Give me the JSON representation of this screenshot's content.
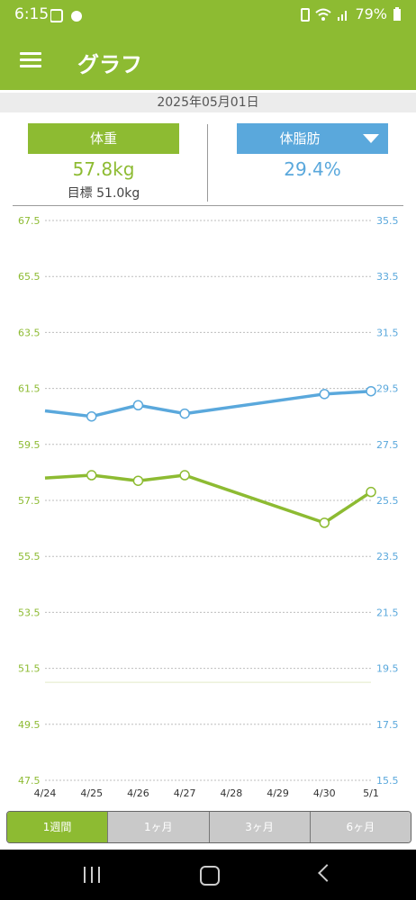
{
  "status_bar": {
    "time": "6:15",
    "battery": "79%"
  },
  "app_bar": {
    "title": "グラフ"
  },
  "date": "2025年05月01日",
  "weight": {
    "label": "体重",
    "value": "57.8kg",
    "goal": "目標 51.0kg"
  },
  "body_fat": {
    "label": "体脂肪",
    "value": "29.4%"
  },
  "tabs": [
    "1週間",
    "1ヶ月",
    "3ヶ月",
    "6ヶ月"
  ],
  "colors": {
    "accent_green": "#8dbb32",
    "accent_blue": "#5aa8dc"
  },
  "chart_data": {
    "type": "line",
    "x": [
      "4/24",
      "4/25",
      "4/26",
      "4/27",
      "4/28",
      "4/29",
      "4/30",
      "5/1"
    ],
    "y_left": {
      "ticks": [
        "67.5",
        "65.5",
        "63.5",
        "61.5",
        "59.5",
        "57.5",
        "55.5",
        "53.5",
        "51.5",
        "49.5",
        "47.5"
      ],
      "ylim": [
        47.5,
        67.5
      ]
    },
    "y_right": {
      "ticks": [
        "35.5",
        "33.5",
        "31.5",
        "29.5",
        "27.5",
        "25.5",
        "23.5",
        "21.5",
        "19.5",
        "17.5",
        "15.5"
      ],
      "ylim": [
        15.5,
        35.5
      ]
    },
    "goal_line": 51.0,
    "series": [
      {
        "axis": "left",
        "color": "#8dbb32",
        "points": [
          {
            "x": "4/24",
            "y": 58.3,
            "marker": false
          },
          {
            "x": "4/25",
            "y": 58.4,
            "marker": true
          },
          {
            "x": "4/26",
            "y": 58.2,
            "marker": true
          },
          {
            "x": "4/27",
            "y": 58.4,
            "marker": true
          },
          {
            "x": "4/30",
            "y": 56.7,
            "marker": true
          },
          {
            "x": "5/1",
            "y": 57.8,
            "marker": true
          }
        ]
      },
      {
        "axis": "right",
        "color": "#5aa8dc",
        "points": [
          {
            "x": "4/24",
            "y": 28.7,
            "marker": false
          },
          {
            "x": "4/25",
            "y": 28.5,
            "marker": true
          },
          {
            "x": "4/26",
            "y": 28.9,
            "marker": true
          },
          {
            "x": "4/27",
            "y": 28.6,
            "marker": true
          },
          {
            "x": "4/30",
            "y": 29.3,
            "marker": true
          },
          {
            "x": "5/1",
            "y": 29.4,
            "marker": true
          }
        ]
      }
    ]
  }
}
